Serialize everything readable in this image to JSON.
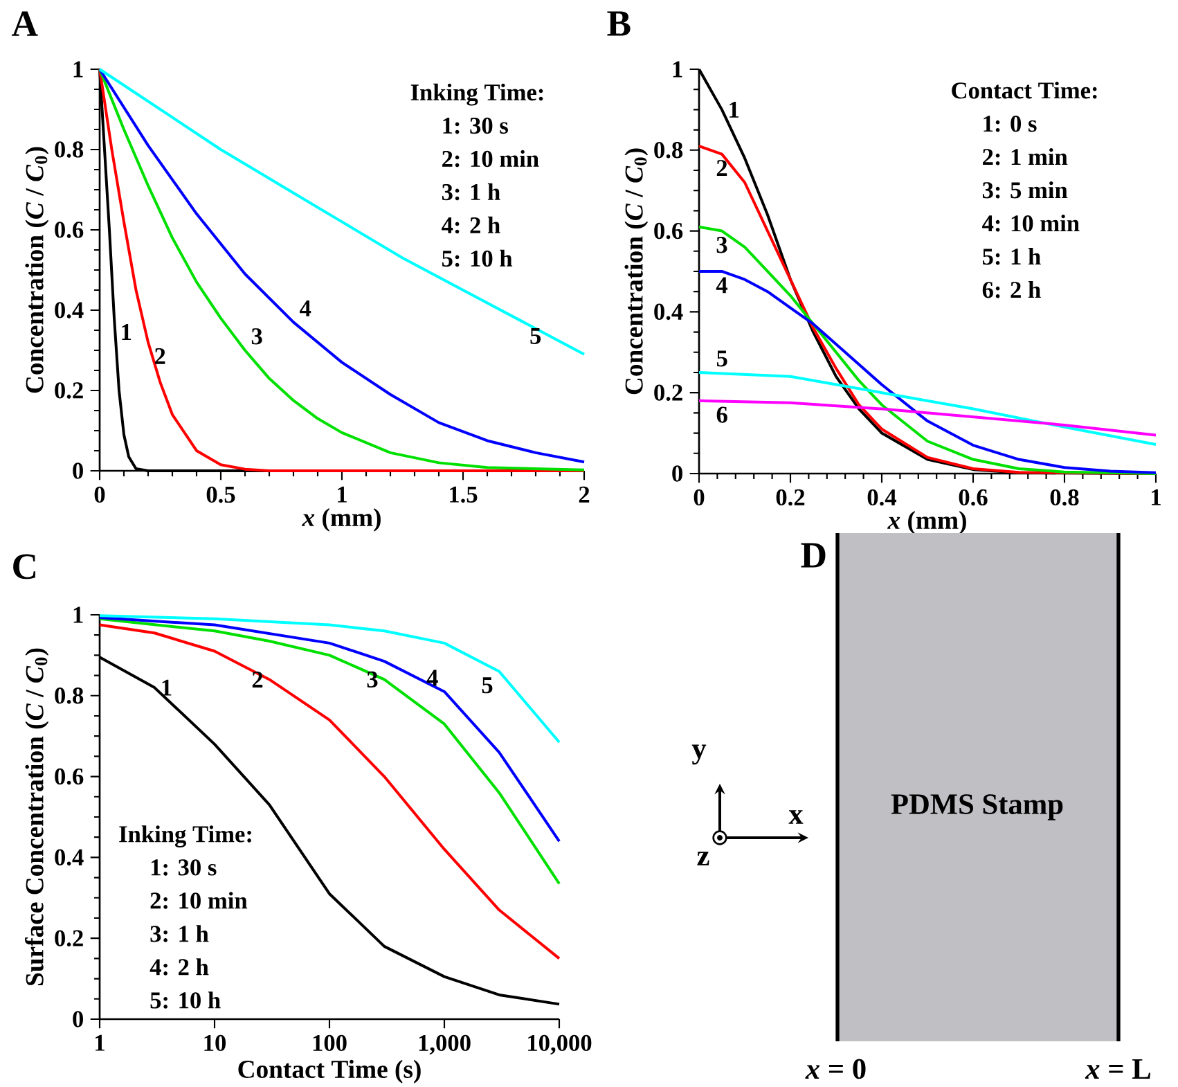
{
  "chart_data": [
    {
      "type": "line",
      "title": "A",
      "xlabel": "*x* (mm)",
      "ylabel": "Concentration (*C* / *C*$_{0}$)",
      "xlim": [
        0,
        2
      ],
      "ylim": [
        0,
        1
      ],
      "xticks": [
        0,
        0.5,
        1,
        1.5,
        2
      ],
      "yticks": [
        0,
        0.2,
        0.4,
        0.6,
        0.8,
        1
      ],
      "series": [
        {
          "color": "#000000",
          "x": [
            0,
            0.02,
            0.04,
            0.06,
            0.08,
            0.1,
            0.12,
            0.15,
            0.2,
            2
          ],
          "values": [
            1,
            0.8,
            0.6,
            0.38,
            0.2,
            0.09,
            0.035,
            0.005,
            0,
            0
          ]
        },
        {
          "color": "#ff0000",
          "x": [
            0,
            0.05,
            0.1,
            0.15,
            0.2,
            0.25,
            0.3,
            0.4,
            0.5,
            0.6,
            0.7,
            2
          ],
          "values": [
            1,
            0.8,
            0.62,
            0.45,
            0.32,
            0.22,
            0.14,
            0.05,
            0.015,
            0.004,
            0,
            0
          ]
        },
        {
          "color": "#00e000",
          "x": [
            0,
            0.1,
            0.2,
            0.3,
            0.4,
            0.5,
            0.6,
            0.7,
            0.8,
            0.9,
            1.0,
            1.2,
            1.4,
            1.6,
            2
          ],
          "values": [
            1,
            0.85,
            0.71,
            0.58,
            0.47,
            0.38,
            0.3,
            0.23,
            0.175,
            0.13,
            0.095,
            0.045,
            0.02,
            0.008,
            0.002
          ]
        },
        {
          "color": "#0000ff",
          "x": [
            0,
            0.2,
            0.4,
            0.6,
            0.8,
            1.0,
            1.2,
            1.4,
            1.6,
            1.8,
            2
          ],
          "values": [
            1,
            0.81,
            0.64,
            0.49,
            0.37,
            0.27,
            0.19,
            0.12,
            0.075,
            0.045,
            0.022
          ]
        },
        {
          "color": "#00ffff",
          "x": [
            0,
            0.25,
            0.5,
            0.75,
            1,
            1.25,
            1.5,
            1.75,
            2
          ],
          "values": [
            1,
            0.9,
            0.8,
            0.71,
            0.62,
            0.53,
            0.45,
            0.37,
            0.29
          ]
        }
      ],
      "annotations": [
        "Inking Time:",
        "1: 30 s",
        "2: 10 min",
        "3: 1 h",
        "4: 2 h",
        "5: 10 h",
        {
          "text": "1",
          "x": 0.06,
          "y": 0.38
        },
        {
          "text": "2",
          "x": 0.2,
          "y": 0.32
        },
        {
          "text": "3",
          "x": 0.6,
          "y": 0.3
        },
        {
          "text": "4",
          "x": 0.8,
          "y": 0.37
        },
        {
          "text": "5",
          "x": 1.75,
          "y": 0.37
        }
      ]
    },
    {
      "type": "line",
      "title": "B",
      "xlabel": "*x* (mm)",
      "ylabel": "Concentration (*C* / *C*$_{0}$)",
      "xlim": [
        0,
        1
      ],
      "ylim": [
        0,
        1
      ],
      "xticks": [
        0,
        0.2,
        0.4,
        0.6,
        0.8,
        1
      ],
      "yticks": [
        0,
        0.2,
        0.4,
        0.6,
        0.8,
        1
      ],
      "series": [
        {
          "color": "#000000",
          "x": [
            0,
            0.05,
            0.1,
            0.15,
            0.2,
            0.25,
            0.3,
            0.35,
            0.4,
            0.5,
            0.6,
            0.7,
            1
          ],
          "values": [
            1,
            0.9,
            0.78,
            0.64,
            0.48,
            0.35,
            0.24,
            0.16,
            0.1,
            0.035,
            0.01,
            0.002,
            0
          ]
        },
        {
          "color": "#ff0000",
          "x": [
            0,
            0.05,
            0.1,
            0.15,
            0.2,
            0.25,
            0.3,
            0.35,
            0.4,
            0.5,
            0.6,
            0.7,
            1
          ],
          "values": [
            0.81,
            0.79,
            0.72,
            0.6,
            0.48,
            0.36,
            0.26,
            0.17,
            0.11,
            0.04,
            0.012,
            0.003,
            0
          ]
        },
        {
          "color": "#00e000",
          "x": [
            0,
            0.05,
            0.1,
            0.15,
            0.2,
            0.25,
            0.3,
            0.35,
            0.4,
            0.5,
            0.6,
            0.7,
            0.8,
            1
          ],
          "values": [
            0.61,
            0.6,
            0.56,
            0.5,
            0.44,
            0.37,
            0.3,
            0.23,
            0.17,
            0.08,
            0.035,
            0.012,
            0.004,
            0
          ]
        },
        {
          "color": "#0000ff",
          "x": [
            0,
            0.05,
            0.1,
            0.15,
            0.2,
            0.25,
            0.3,
            0.35,
            0.4,
            0.5,
            0.6,
            0.7,
            0.8,
            0.9,
            1
          ],
          "values": [
            0.5,
            0.5,
            0.48,
            0.45,
            0.41,
            0.37,
            0.32,
            0.27,
            0.22,
            0.13,
            0.07,
            0.035,
            0.015,
            0.006,
            0.002
          ]
        },
        {
          "color": "#00ffff",
          "x": [
            0,
            0.2,
            0.4,
            0.6,
            0.8,
            1
          ],
          "values": [
            0.25,
            0.24,
            0.2,
            0.16,
            0.115,
            0.072
          ]
        },
        {
          "color": "#ff00ff",
          "x": [
            0,
            0.2,
            0.4,
            0.6,
            0.8,
            1
          ],
          "values": [
            0.18,
            0.175,
            0.16,
            0.14,
            0.12,
            0.095
          ]
        }
      ],
      "annotations": [
        "Contact Time:",
        "1: 0 s",
        "2: 1 min",
        "3: 5 min",
        "4: 10 min",
        "5: 1 h",
        "6: 2 h",
        {
          "text": "1",
          "x": 0.05,
          "y": 0.9
        },
        {
          "text": "2",
          "x": 0.05,
          "y": 0.79
        },
        {
          "text": "3",
          "x": 0.05,
          "y": 0.6
        },
        {
          "text": "4",
          "x": 0.05,
          "y": 0.5
        },
        {
          "text": "5",
          "x": 0,
          "y": 0.25
        },
        {
          "text": "6",
          "x": 0,
          "y": 0.18
        }
      ]
    },
    {
      "type": "line",
      "title": "C",
      "xlabel": "Contact Time (s)",
      "ylabel": "Surface Concentration (*C* / *C*$_{0}$)",
      "log": "x",
      "xlim": [
        1,
        10000
      ],
      "ylim": [
        0,
        1
      ],
      "xticks": [
        1,
        10,
        100,
        {
          "value": 1000,
          "label": "1,000"
        },
        {
          "value": 10000,
          "label": "10,000"
        }
      ],
      "yticks": [
        0,
        0.2,
        0.4,
        0.6,
        0.8,
        1
      ],
      "series": [
        {
          "color": "#000000",
          "x": [
            1,
            3,
            10,
            30,
            100,
            300,
            1000,
            3000,
            10000
          ],
          "values": [
            0.895,
            0.82,
            0.68,
            0.53,
            0.31,
            0.18,
            0.105,
            0.06,
            0.037
          ]
        },
        {
          "color": "#ff0000",
          "x": [
            1,
            3,
            10,
            30,
            100,
            300,
            1000,
            3000,
            10000
          ],
          "values": [
            0.975,
            0.955,
            0.91,
            0.84,
            0.74,
            0.6,
            0.42,
            0.27,
            0.15
          ]
        },
        {
          "color": "#00e000",
          "x": [
            1,
            10,
            30,
            100,
            300,
            1000,
            3000,
            10000
          ],
          "values": [
            0.99,
            0.96,
            0.935,
            0.9,
            0.84,
            0.73,
            0.56,
            0.335
          ]
        },
        {
          "color": "#0000ff",
          "x": [
            1,
            10,
            100,
            300,
            1000,
            3000,
            10000
          ],
          "values": [
            0.993,
            0.975,
            0.93,
            0.885,
            0.81,
            0.66,
            0.44
          ]
        },
        {
          "color": "#00ffff",
          "x": [
            1,
            10,
            100,
            300,
            1000,
            3000,
            10000
          ],
          "values": [
            0.998,
            0.99,
            0.975,
            0.96,
            0.93,
            0.86,
            0.685
          ]
        }
      ],
      "annotations": [
        "Inking Time:",
        "1: 30 s",
        "2: 10 min",
        "3: 1 h",
        "4: 2 h",
        "5: 10 h",
        {
          "text": "1",
          "x": 3,
          "y": 0.82
        },
        {
          "text": "2",
          "x": 30,
          "y": 0.84
        },
        {
          "text": "3",
          "x": 300,
          "y": 0.84
        },
        {
          "text": "4",
          "x": 1000,
          "y": 0.81
        },
        {
          "text": "5",
          "x": 3000,
          "y": 0.86
        }
      ]
    },
    {
      "type": "other",
      "title": "D",
      "annotations": [
        "PDMS Stamp",
        "*x* = 0",
        "*x* = L",
        "x",
        "y",
        "z"
      ]
    }
  ]
}
